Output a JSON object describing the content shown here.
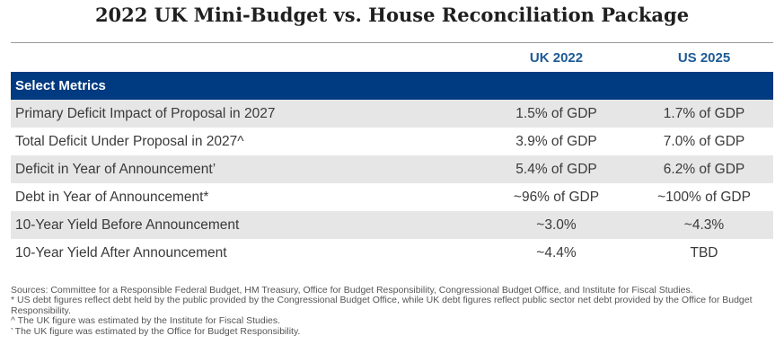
{
  "title": "2022 UK Mini-Budget vs. House Reconciliation Package",
  "columns": {
    "uk": "UK 2022",
    "us": "US 2025"
  },
  "section_label": "Select Metrics",
  "rows": [
    {
      "label": "Primary Deficit Impact of Proposal in 2027",
      "uk": "1.5% of GDP",
      "us": "1.7% of GDP"
    },
    {
      "label": "Total Deficit Under Proposal in 2027^",
      "uk": "3.9% of GDP",
      "us": "7.0% of GDP"
    },
    {
      "label": "Deficit in Year of Announcement’",
      "uk": "5.4% of GDP",
      "us": "6.2% of GDP"
    },
    {
      "label": "Debt in Year of Announcement*",
      "uk": "~96% of GDP",
      "us": "~100% of GDP"
    },
    {
      "label": "10-Year Yield Before Announcement",
      "uk": "~3.0%",
      "us": "~4.3%"
    },
    {
      "label": "10-Year Yield After Announcement",
      "uk": "~4.4%",
      "us": "TBD"
    }
  ],
  "notes": {
    "sources": "Sources: Committee for a Responsible Federal Budget, HM Treasury, Office for Budget Responsibility, Congressional Budget Office, and Institute for Fiscal Studies.",
    "asterisk": "* US debt figures reflect debt held by the public provided by the Congressional Budget Office, while UK debt figures reflect public sector net debt provided by the Office for Budget Responsibility.",
    "caret": "^ The UK figure was estimated by the Institute for Fiscal Studies.",
    "apostrophe": "’ The UK figure was estimated by the Office for Budget Responsibility."
  },
  "colors": {
    "header_text": "#1d5a96",
    "section_bg": "#003a80",
    "row_shade": "#e6e6e6"
  }
}
